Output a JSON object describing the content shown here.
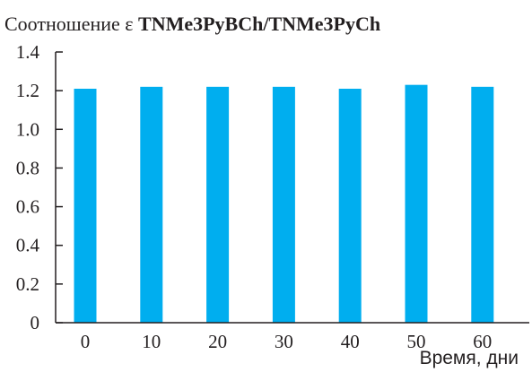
{
  "chart_data": {
    "type": "bar",
    "title": {
      "prefix": "Соотношение ε ",
      "bold": "TNMe3PyBCh/TNMe3PyCh"
    },
    "xlabel": "Время, дни",
    "ylabel": "",
    "categories": [
      "0",
      "10",
      "20",
      "30",
      "40",
      "50",
      "60"
    ],
    "values": [
      1.21,
      1.22,
      1.22,
      1.22,
      1.21,
      1.23,
      1.22
    ],
    "ylim": [
      0,
      1.4
    ],
    "yticks": [
      "0",
      "0.2",
      "0.4",
      "0.6",
      "0.8",
      "1.0",
      "1.2",
      "1.4"
    ],
    "bar_color": "#00aeef",
    "axis_color": "#231f20",
    "grid": false,
    "legend": "none"
  }
}
